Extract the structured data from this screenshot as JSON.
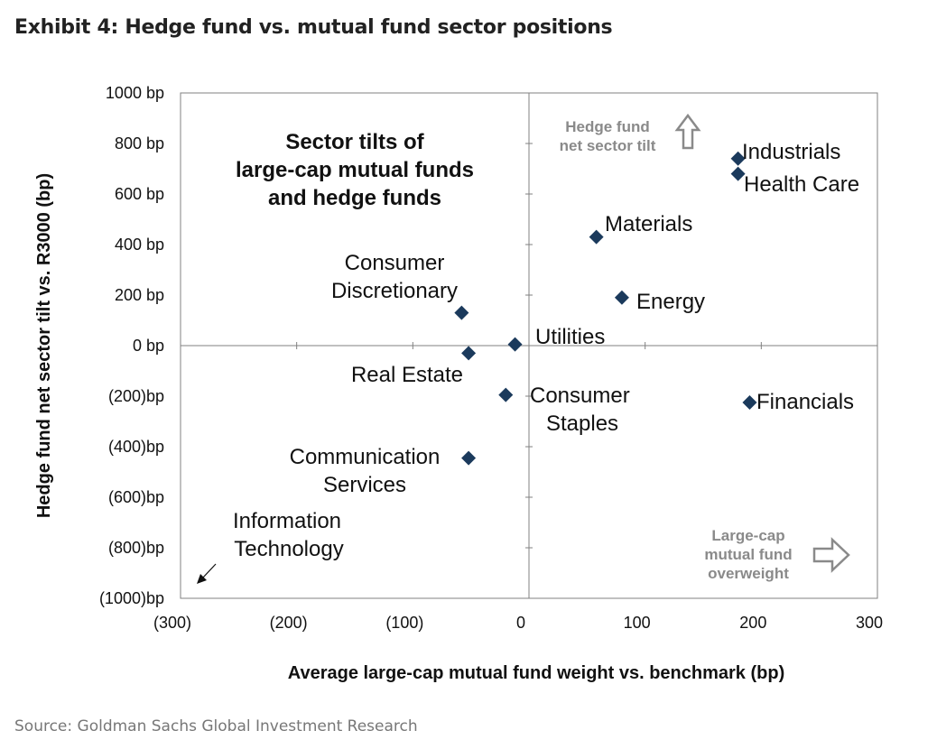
{
  "title": "Exhibit 4: Hedge fund vs. mutual fund sector positions",
  "source": "Source: Goldman Sachs Global Investment Research",
  "chart_data": {
    "type": "scatter",
    "title": "Sector tilts of large-cap mutual funds and hedge funds",
    "title_lines": [
      "Sector tilts of",
      "large-cap mutual funds",
      "and hedge funds"
    ],
    "xlabel": "Average large-cap mutual fund weight vs. benchmark (bp)",
    "ylabel": "Hedge fund net sector tilt vs. R3000 (bp)",
    "xlim": [
      -300,
      300
    ],
    "ylim": [
      -1000,
      1000
    ],
    "x_ticks": [
      {
        "value": -300,
        "label": "(300)"
      },
      {
        "value": -200,
        "label": "(200)"
      },
      {
        "value": -100,
        "label": "(100)"
      },
      {
        "value": 0,
        "label": "0"
      },
      {
        "value": 100,
        "label": "100"
      },
      {
        "value": 200,
        "label": "200"
      },
      {
        "value": 300,
        "label": "300"
      }
    ],
    "y_ticks": [
      {
        "value": 1000,
        "label": "1000 bp"
      },
      {
        "value": 800,
        "label": "800 bp"
      },
      {
        "value": 600,
        "label": "600 bp"
      },
      {
        "value": 400,
        "label": "400 bp"
      },
      {
        "value": 200,
        "label": "200 bp"
      },
      {
        "value": 0,
        "label": "0 bp"
      },
      {
        "value": -200,
        "label": "(200)bp"
      },
      {
        "value": -400,
        "label": "(400)bp"
      },
      {
        "value": -600,
        "label": "(600)bp"
      },
      {
        "value": -800,
        "label": "(800)bp"
      },
      {
        "value": -1000,
        "label": "(1000)bp"
      }
    ],
    "points": [
      {
        "name": "Industrials",
        "lines": [
          "Industrials"
        ],
        "x": 180,
        "y": 740
      },
      {
        "name": "Health Care",
        "lines": [
          "Health Care"
        ],
        "x": 180,
        "y": 680
      },
      {
        "name": "Materials",
        "lines": [
          "Materials"
        ],
        "x": 58,
        "y": 430
      },
      {
        "name": "Energy",
        "lines": [
          "Energy"
        ],
        "x": 80,
        "y": 190
      },
      {
        "name": "Consumer Discretionary",
        "lines": [
          "Consumer",
          "Discretionary"
        ],
        "x": -58,
        "y": 130
      },
      {
        "name": "Utilities",
        "lines": [
          "Utilities"
        ],
        "x": -12,
        "y": 5
      },
      {
        "name": "Real Estate",
        "lines": [
          "Real Estate"
        ],
        "x": -52,
        "y": -30
      },
      {
        "name": "Consumer Staples",
        "lines": [
          "Consumer",
          "Staples"
        ],
        "x": -20,
        "y": -195
      },
      {
        "name": "Financials",
        "lines": [
          "Financials"
        ],
        "x": 190,
        "y": -225
      },
      {
        "name": "Communication Services",
        "lines": [
          "Communication",
          "Services"
        ],
        "x": -52,
        "y": -445
      },
      {
        "name": "Information Technology",
        "lines": [
          "Information",
          "Technology"
        ],
        "x": -300,
        "y": -1000,
        "off_chart": true
      }
    ],
    "annotations": [
      {
        "name": "hedge-fund-hint",
        "lines": [
          "Hedge fund",
          "net sector tilt"
        ],
        "arrow": "up"
      },
      {
        "name": "mutual-fund-hint",
        "lines": [
          "Large-cap",
          "mutual fund",
          "overweight"
        ],
        "arrow": "right"
      }
    ],
    "grid": false,
    "marker": "diamond",
    "colors": {
      "marker": "#1b3a5c",
      "axis": "#808080",
      "hint": "#8a8a8a",
      "text": "#111111"
    }
  }
}
